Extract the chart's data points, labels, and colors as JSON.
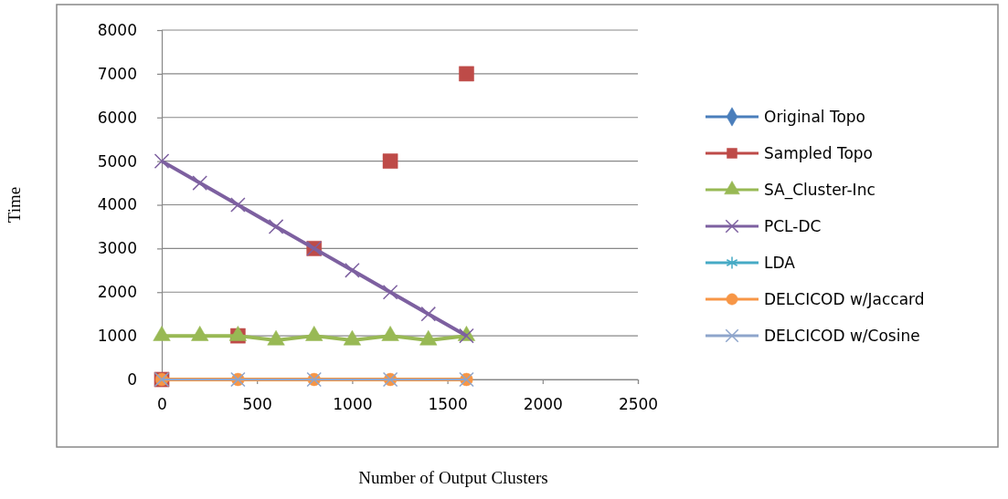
{
  "chart_data": {
    "type": "line",
    "xlabel": "Number of Output Clusters",
    "ylabel": "Time",
    "xlim": [
      0,
      2500
    ],
    "xticks": [
      0,
      500,
      1000,
      1500,
      2000,
      2500
    ],
    "ylim": [
      0,
      8000
    ],
    "yticks": [
      0,
      1000,
      2000,
      3000,
      4000,
      5000,
      6000,
      7000,
      8000
    ],
    "grid": "y",
    "legend": "right",
    "series": [
      {
        "name": "Original Topo",
        "color": "#4a7ebb",
        "marker": "diamond"
      },
      {
        "name": "Sampled Topo",
        "type": "scatter",
        "color": "#be4b48",
        "marker": "square",
        "x": [
          0,
          400,
          800,
          1200,
          1600
        ],
        "values": [
          0,
          1000,
          3000,
          5000,
          7000
        ]
      },
      {
        "name": "SA_Cluster-Inc",
        "color": "#98b954",
        "marker": "triangle",
        "x": [
          0,
          200,
          400,
          600,
          800,
          1000,
          1200,
          1400,
          1600
        ],
        "values": [
          1000,
          1000,
          1000,
          900,
          1000,
          900,
          1000,
          900,
          1000
        ]
      },
      {
        "name": "PCL-DC",
        "color": "#7d60a0",
        "marker": "cross",
        "x": [
          0,
          200,
          400,
          600,
          800,
          1000,
          1200,
          1400,
          1600
        ],
        "values": [
          5000,
          4500,
          4000,
          3500,
          3000,
          2500,
          2000,
          1500,
          1000
        ]
      },
      {
        "name": "LDA",
        "color": "#46aac5",
        "marker": "star"
      },
      {
        "name": "DELCICOD w/Jaccard",
        "color": "#f79646",
        "marker": "circle",
        "x": [
          0,
          400,
          800,
          1200,
          1600
        ],
        "values": [
          0,
          0,
          0,
          0,
          0
        ]
      },
      {
        "name": "DELCICOD w/Cosine",
        "color": "#8ea5cb",
        "marker": "cross",
        "x": [
          0,
          400,
          800,
          1200,
          1600
        ],
        "values": [
          0,
          0,
          0,
          0,
          0
        ]
      }
    ]
  }
}
